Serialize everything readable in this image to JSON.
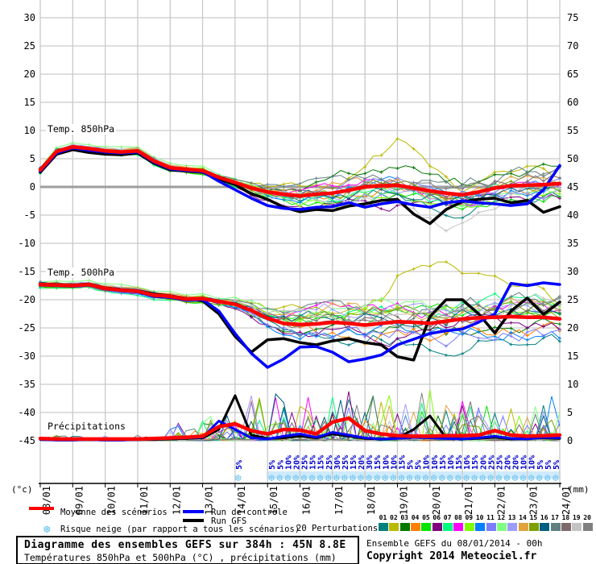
{
  "chart": {
    "dates": [
      "08/01",
      "09/01",
      "10/01",
      "11/01",
      "12/01",
      "13/01",
      "14/01",
      "15/01",
      "16/01",
      "17/01",
      "18/01",
      "19/01",
      "20/01",
      "21/01",
      "22/01",
      "23/01",
      "24/01"
    ],
    "left_axis": {
      "unit": "(°c)",
      "ticks": [
        30,
        25,
        20,
        15,
        10,
        5,
        0,
        -5,
        -10,
        -15,
        -20,
        -25,
        -30,
        -35,
        -40,
        -45
      ]
    },
    "right_axis": {
      "unit": "(mm)",
      "ticks": [
        75,
        70,
        65,
        60,
        55,
        50,
        45,
        40,
        35,
        30,
        25,
        20,
        15,
        10,
        5,
        0
      ]
    },
    "panels": [
      {
        "id": "t850",
        "label": "Temp. 850hPa"
      },
      {
        "id": "t500",
        "label": "Temp. 500hPa"
      },
      {
        "id": "precip",
        "label": "Précipitations"
      }
    ]
  },
  "chart_data": {
    "type": "line",
    "title": "Diagramme des ensembles GEFS sur 384h : 45N 8.8E",
    "x_start": "08/01",
    "x_end": "24/01",
    "x_step_days": 0.5,
    "left_axis_range_degC": [
      -45,
      30
    ],
    "right_axis_range_mm": [
      0,
      75
    ],
    "grid": true,
    "series": {
      "t850_degC": {
        "mean": [
          3.0,
          6.3,
          7.1,
          6.8,
          6.4,
          6.2,
          6.4,
          4.6,
          3.4,
          3.1,
          2.9,
          1.7,
          0.8,
          -0.2,
          -0.9,
          -1.3,
          -1.6,
          -1.3,
          -1.1,
          -0.6,
          0.0,
          0.2,
          0.3,
          -0.2,
          -0.7,
          -1.1,
          -1.4,
          -0.9,
          -0.2,
          0.2,
          0.3,
          0.4,
          0.6
        ],
        "control": [
          2.8,
          6.0,
          6.9,
          6.5,
          6.2,
          6.0,
          6.2,
          4.4,
          3.2,
          2.9,
          2.7,
          1.0,
          -0.5,
          -2.0,
          -3.3,
          -3.8,
          -4.0,
          -3.6,
          -3.5,
          -2.8,
          -3.6,
          -3.0,
          -2.6,
          -3.2,
          -3.6,
          -2.8,
          -2.5,
          -2.8,
          -3.0,
          -3.3,
          -3.0,
          -0.5,
          3.8
        ],
        "gfs": [
          2.6,
          5.8,
          6.6,
          6.1,
          5.8,
          5.7,
          6.0,
          4.2,
          3.0,
          2.8,
          2.6,
          1.4,
          0.4,
          -1.2,
          -2.2,
          -3.6,
          -4.4,
          -4.0,
          -4.2,
          -3.4,
          -3.0,
          -2.4,
          -2.2,
          -4.8,
          -6.5,
          -4.0,
          -2.6,
          -2.2,
          -2.0,
          -2.8,
          -2.4,
          -4.5,
          -3.5
        ]
      },
      "t500_degC": {
        "mean": [
          -17.3,
          -17.4,
          -17.5,
          -17.3,
          -18.0,
          -18.3,
          -18.5,
          -19.2,
          -19.4,
          -19.9,
          -19.8,
          -20.3,
          -20.8,
          -21.9,
          -23.3,
          -24.2,
          -24.4,
          -24.3,
          -24.0,
          -24.2,
          -24.5,
          -24.2,
          -23.9,
          -24.0,
          -24.2,
          -23.8,
          -23.4,
          -23.2,
          -23.1,
          -23.0,
          -23.1,
          -23.1,
          -23.4
        ],
        "control": [
          -17.4,
          -17.5,
          -17.6,
          -17.4,
          -18.1,
          -18.4,
          -18.6,
          -19.4,
          -19.6,
          -20.1,
          -20.0,
          -22.0,
          -26.0,
          -29.5,
          -32.0,
          -30.5,
          -28.4,
          -28.3,
          -29.3,
          -31.0,
          -30.5,
          -29.8,
          -28.0,
          -27.0,
          -26.0,
          -25.5,
          -25.2,
          -24.0,
          -22.5,
          -17.1,
          -17.5,
          -17.0,
          -17.3
        ],
        "gfs": [
          -17.2,
          -17.3,
          -17.4,
          -17.2,
          -17.9,
          -18.2,
          -18.4,
          -19.0,
          -19.3,
          -19.8,
          -20.2,
          -22.5,
          -26.5,
          -29.3,
          -27.1,
          -26.9,
          -27.6,
          -28.0,
          -27.3,
          -26.9,
          -27.6,
          -28.0,
          -30.1,
          -30.7,
          -23.0,
          -20.0,
          -20.0,
          -22.5,
          -25.9,
          -22.0,
          -19.7,
          -22.6,
          -20.4
        ]
      },
      "precip_mm": {
        "mean": [
          0.4,
          0.3,
          0.3,
          0.3,
          0.3,
          0.3,
          0.3,
          0.4,
          0.5,
          0.6,
          0.8,
          2.5,
          3.0,
          1.8,
          1.2,
          2.0,
          1.9,
          1.2,
          3.3,
          4.0,
          1.8,
          1.2,
          0.9,
          0.8,
          0.8,
          0.9,
          0.9,
          1.0,
          1.8,
          1.0,
          0.8,
          0.9,
          1.0
        ],
        "control": [
          0.2,
          0.1,
          0.1,
          0.2,
          0.1,
          0.1,
          0.2,
          0.3,
          0.4,
          0.5,
          0.6,
          3.5,
          2.0,
          0.5,
          0.3,
          0.8,
          1.2,
          0.6,
          1.5,
          1.0,
          0.5,
          0.3,
          0.4,
          0.6,
          0.5,
          0.4,
          0.3,
          0.5,
          0.8,
          0.4,
          0.3,
          0.6,
          0.5
        ],
        "gfs": [
          0.3,
          0.1,
          0.1,
          0.2,
          0.1,
          0.1,
          0.2,
          0.2,
          0.3,
          0.4,
          0.5,
          2.0,
          8.0,
          1.0,
          0.4,
          0.5,
          0.8,
          0.5,
          1.2,
          0.8,
          0.4,
          0.3,
          0.5,
          2.0,
          4.4,
          0.5,
          0.3,
          0.4,
          0.6,
          0.3,
          0.4,
          0.5,
          0.4
        ]
      }
    },
    "snow_risk": {
      "isolated": {
        "x_day": 6.1,
        "pct": "5%"
      },
      "run_start_day": 7.125,
      "step_days": 0.25,
      "pct": [
        "5%",
        "5%",
        "10%",
        "20%",
        "25%",
        "15%",
        "15%",
        "25%",
        "30%",
        "25%",
        "15%",
        "20%",
        "30%",
        "15%",
        "10%",
        "10%",
        "15%",
        "5%",
        "5%",
        "10%",
        "10%",
        "15%",
        "10%",
        "15%",
        "10%",
        "15%",
        "20%",
        "25%",
        "25%",
        "20%",
        "20%",
        "10%",
        "10%",
        "5%",
        "5%",
        "5%"
      ]
    },
    "ensemble_members": [
      {
        "num": "01",
        "color": "#008080"
      },
      {
        "num": "02",
        "color": "#b9b900"
      },
      {
        "num": "03",
        "color": "#007800"
      },
      {
        "num": "04",
        "color": "#ff8000"
      },
      {
        "num": "05",
        "color": "#00e400"
      },
      {
        "num": "06",
        "color": "#800080"
      },
      {
        "num": "07",
        "color": "#00ff7f"
      },
      {
        "num": "08",
        "color": "#ff00ff"
      },
      {
        "num": "09",
        "color": "#7fff00"
      },
      {
        "num": "10",
        "color": "#0080ff"
      },
      {
        "num": "11",
        "color": "#7d7dff"
      },
      {
        "num": "12",
        "color": "#7fff7f"
      },
      {
        "num": "13",
        "color": "#9c9cff"
      },
      {
        "num": "14",
        "color": "#e0a33e"
      },
      {
        "num": "15",
        "color": "#7da000"
      },
      {
        "num": "16",
        "color": "#005f80"
      },
      {
        "num": "17",
        "color": "#5f8080"
      },
      {
        "num": "18",
        "color": "#7f6a6a"
      },
      {
        "num": "19",
        "color": "#c3c3c3"
      },
      {
        "num": "20",
        "color": "#808080"
      }
    ],
    "colors": {
      "mean": "#ff0000",
      "control": "#0000ff",
      "gfs": "#000000",
      "snow": "#6ec6ef",
      "snow_pct": "#0000cd",
      "grid": "#c9c9c9",
      "zero_line": "#9e9e9e"
    }
  },
  "legend": {
    "mean": "Moyenne des scénarios",
    "control": "Run de contrôle",
    "gfs": "Run GFS",
    "snow": "Risque neige (par rapport a tous les scénarios)",
    "perturbations": "20 Perturbations"
  },
  "titlebox": {
    "line1": "Diagramme des ensembles GEFS sur 384h : 45N 8.8E",
    "line2": "Températures 850hPa et 500hPa (°C) , précipitations (mm)"
  },
  "footer": {
    "run_info": "Ensemble GEFS du 08/01/2014 - 00h",
    "copyright": "Copyright 2014 Meteociel.fr"
  }
}
